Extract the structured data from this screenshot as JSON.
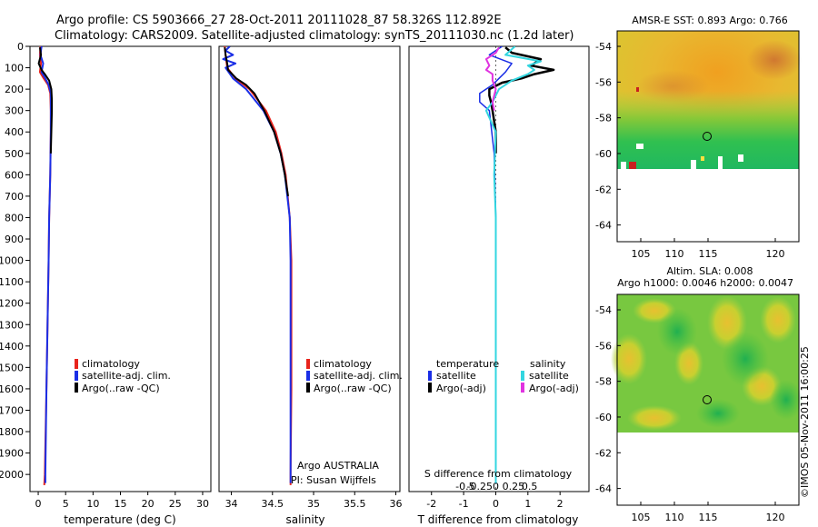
{
  "header": {
    "line1": "Argo profile: CS 5903666_27 28-Oct-2011 20111028_87 58.326S 112.892E",
    "line2": "Climatology: CARS2009. Satellite-adjusted climatology: synTS_20111030.nc (1.2d later)"
  },
  "colors": {
    "climatology": "#e8231c",
    "satellite": "#1a2ee6",
    "argo": "#000000",
    "sat_salinity": "#33d6e0",
    "argo_salinity": "#e033e0"
  },
  "depth_axis": {
    "ticks": [
      0,
      100,
      200,
      300,
      400,
      500,
      600,
      700,
      800,
      900,
      1000,
      1100,
      1200,
      1300,
      1400,
      1500,
      1600,
      1700,
      1800,
      1900,
      2000
    ],
    "range": [
      0,
      2080
    ]
  },
  "chart_data": [
    {
      "type": "line",
      "name": "temperature",
      "xlabel": "temperature (deg C)",
      "xlim": [
        -1.5,
        31.5
      ],
      "xticks": [
        "0",
        "5",
        "10",
        "15",
        "20",
        "25",
        "30"
      ],
      "xtick_values": [
        0,
        5,
        10,
        15,
        20,
        25,
        30
      ],
      "legend": [
        "climatology",
        "satellite-adj. clim.",
        "Argo(..raw -QC)"
      ],
      "series": [
        {
          "name": "climatology",
          "color_key": "climatology",
          "depth": [
            0,
            40,
            80,
            120,
            150,
            180,
            220,
            300,
            400,
            600,
            800,
            1000,
            1300,
            1600,
            2000,
            2050
          ],
          "values": [
            0.4,
            0.3,
            0.5,
            0.3,
            1.0,
            1.8,
            2.2,
            2.3,
            2.3,
            2.2,
            2.0,
            1.9,
            1.7,
            1.5,
            1.2,
            1.1
          ]
        },
        {
          "name": "satellite-adj. clim.",
          "color_key": "satellite",
          "depth": [
            0,
            40,
            80,
            120,
            150,
            180,
            220,
            300,
            400,
            600,
            800,
            1000,
            1300,
            1600,
            2000,
            2040
          ],
          "values": [
            0.6,
            0.4,
            0.9,
            0.6,
            1.3,
            1.9,
            2.3,
            2.3,
            2.3,
            2.2,
            2.0,
            1.9,
            1.7,
            1.5,
            1.3,
            1.3
          ]
        },
        {
          "name": "Argo(..raw -QC)",
          "color_key": "argo",
          "depth": [
            5,
            40,
            80,
            110,
            130,
            160,
            200,
            250,
            300,
            400,
            500
          ],
          "values": [
            0.3,
            0.5,
            0.1,
            0.6,
            1.2,
            2.0,
            2.4,
            2.5,
            2.5,
            2.4,
            2.3
          ]
        }
      ]
    },
    {
      "type": "line",
      "name": "salinity",
      "xlabel": "salinity",
      "xlim": [
        33.85,
        36.05
      ],
      "xticks": [
        "34",
        "34.5",
        "35",
        "35.5",
        "36"
      ],
      "xtick_values": [
        34,
        34.5,
        35,
        35.5,
        36
      ],
      "legend": [
        "climatology",
        "satellite-adj. clim.",
        "Argo(..raw -QC)"
      ],
      "credit_lines": [
        "Argo AUSTRALIA",
        "PI: Susan Wijffels"
      ],
      "series": [
        {
          "name": "climatology",
          "color_key": "climatology",
          "depth": [
            0,
            40,
            100,
            150,
            200,
            300,
            400,
            500,
            600,
            800,
            1000,
            1300,
            1600,
            2000,
            2050
          ],
          "values": [
            33.92,
            33.93,
            33.95,
            34.05,
            34.22,
            34.42,
            34.54,
            34.61,
            34.66,
            34.71,
            34.73,
            34.73,
            34.73,
            34.72,
            34.72
          ]
        },
        {
          "name": "satellite-adj. clim.",
          "color_key": "satellite",
          "depth": [
            0,
            20,
            40,
            60,
            80,
            100,
            150,
            200,
            300,
            400,
            500,
            600,
            800,
            1000,
            1300,
            1600,
            2000,
            2040
          ],
          "values": [
            33.98,
            33.93,
            34.02,
            33.9,
            34.05,
            33.93,
            34.02,
            34.18,
            34.39,
            34.52,
            34.6,
            34.65,
            34.71,
            34.72,
            34.72,
            34.72,
            34.72,
            34.72
          ]
        },
        {
          "name": "Argo(..raw -QC)",
          "color_key": "argo",
          "depth": [
            5,
            40,
            80,
            110,
            150,
            180,
            220,
            260,
            300,
            400,
            500,
            600,
            700
          ],
          "values": [
            33.92,
            33.93,
            33.95,
            33.96,
            34.06,
            34.18,
            34.28,
            34.34,
            34.4,
            34.52,
            34.6,
            34.65,
            34.69
          ]
        }
      ]
    },
    {
      "type": "line",
      "name": "differences",
      "xlabel": "T difference from climatology",
      "xlim": [
        -2.7,
        2.9
      ],
      "xticks": [
        "-2",
        "-1",
        "0",
        "1",
        "2"
      ],
      "xtick_values": [
        -2,
        -1,
        0,
        1,
        2
      ],
      "top_axis_label": "S difference from climatology",
      "top_ticks": [
        "-0.5",
        "-0.25",
        "0",
        "0.25",
        "0.5"
      ],
      "legend_temperature": {
        "title": "temperature",
        "items": [
          "satellite",
          "Argo(-adj)"
        ]
      },
      "legend_salinity": {
        "title": "salinity",
        "items": [
          "satellite",
          "Argo(-adj)"
        ]
      },
      "series": [
        {
          "name": "temperature satellite",
          "color_key": "satellite",
          "depth": [
            0,
            40,
            80,
            120,
            150,
            180,
            220,
            260,
            300,
            500,
            800,
            1200,
            1600,
            2000,
            2040
          ],
          "values": [
            0.2,
            -0.2,
            0.5,
            0.3,
            0.1,
            -0.1,
            -0.5,
            -0.5,
            -0.2,
            -0.05,
            0,
            0,
            0,
            0,
            0
          ],
          "width": 1.5
        },
        {
          "name": "temperature Argo(-adj)",
          "color_key": "argo",
          "depth": [
            5,
            30,
            60,
            90,
            110,
            130,
            150,
            170,
            200,
            230,
            260,
            300,
            400,
            500
          ],
          "values": [
            0.3,
            0.5,
            1.4,
            1.1,
            1.8,
            1.2,
            0.8,
            0.2,
            -0.2,
            -0.2,
            -0.15,
            -0.1,
            0,
            0
          ],
          "width": 2.5
        },
        {
          "name": "salinity satellite",
          "color_key": "sat_salinity",
          "depth": [
            0,
            40,
            70,
            90,
            110,
            130,
            160,
            200,
            260,
            300,
            400,
            600,
            800,
            1000,
            1300,
            1600,
            2000,
            2040
          ],
          "values": [
            0.6,
            0.3,
            1.4,
            1.0,
            1.2,
            1.0,
            0.5,
            0.1,
            -0.1,
            -0.3,
            0,
            -0.05,
            0,
            0,
            0,
            0,
            0,
            0
          ],
          "width": 2
        },
        {
          "name": "salinity Argo(-adj)",
          "color_key": "argo_salinity",
          "depth": [
            5,
            30,
            60,
            90,
            110,
            130,
            160,
            200,
            260,
            300
          ],
          "values": [
            0.1,
            0.0,
            -0.3,
            -0.2,
            -0.3,
            -0.1,
            -0.1,
            0,
            -0.1,
            -0.05
          ],
          "width": 2
        }
      ]
    }
  ],
  "maps": {
    "sst": {
      "title": "AMSR-E SST: 0.893 Argo: 0.766",
      "yticks": [
        "-54",
        "-56",
        "-58",
        "-60",
        "-62",
        "-64"
      ],
      "xticks": [
        "105",
        "110",
        "115",
        "120"
      ]
    },
    "sla": {
      "title_line1": "Altim. SLA: 0.008",
      "title_line2": "Argo h1000: 0.0046 h2000: 0.0047",
      "yticks": [
        "-54",
        "-56",
        "-58",
        "-60",
        "-62",
        "-64"
      ],
      "xticks": [
        "105",
        "110",
        "115",
        "120"
      ]
    }
  },
  "credit": "©IMOS 05-Nov-2011 16:00:25"
}
